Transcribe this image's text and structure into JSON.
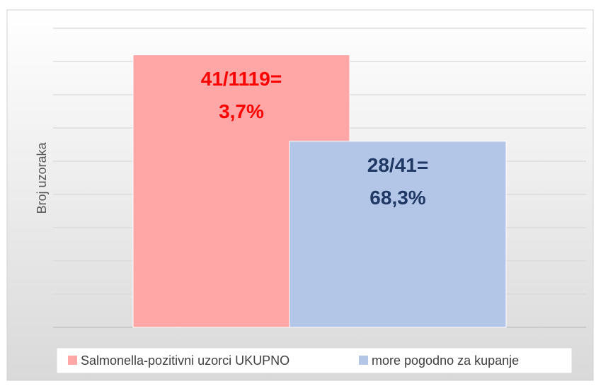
{
  "chart_data": {
    "type": "bar",
    "y_label": "Broj uzoraka",
    "series": [
      {
        "name": "Salmonella-pozitivni uzorci UKUPNO",
        "color": "#ffa6a6",
        "label_color": "#ff0000",
        "values": [
          41
        ]
      },
      {
        "name": "more pogodno za kupanje",
        "color": "#b4c6e7",
        "label_color": "#1f3864",
        "values": [
          28
        ]
      }
    ],
    "annotations": [
      [
        "41/1119=",
        "3,7%"
      ],
      [
        "28/41=",
        "68,3%"
      ]
    ],
    "ylim": [
      0,
      45
    ],
    "yticks": [
      0,
      5,
      10,
      15,
      20,
      25,
      30,
      35,
      40,
      45
    ],
    "show_tick_labels": false,
    "grid": true,
    "legend": "bottom"
  }
}
